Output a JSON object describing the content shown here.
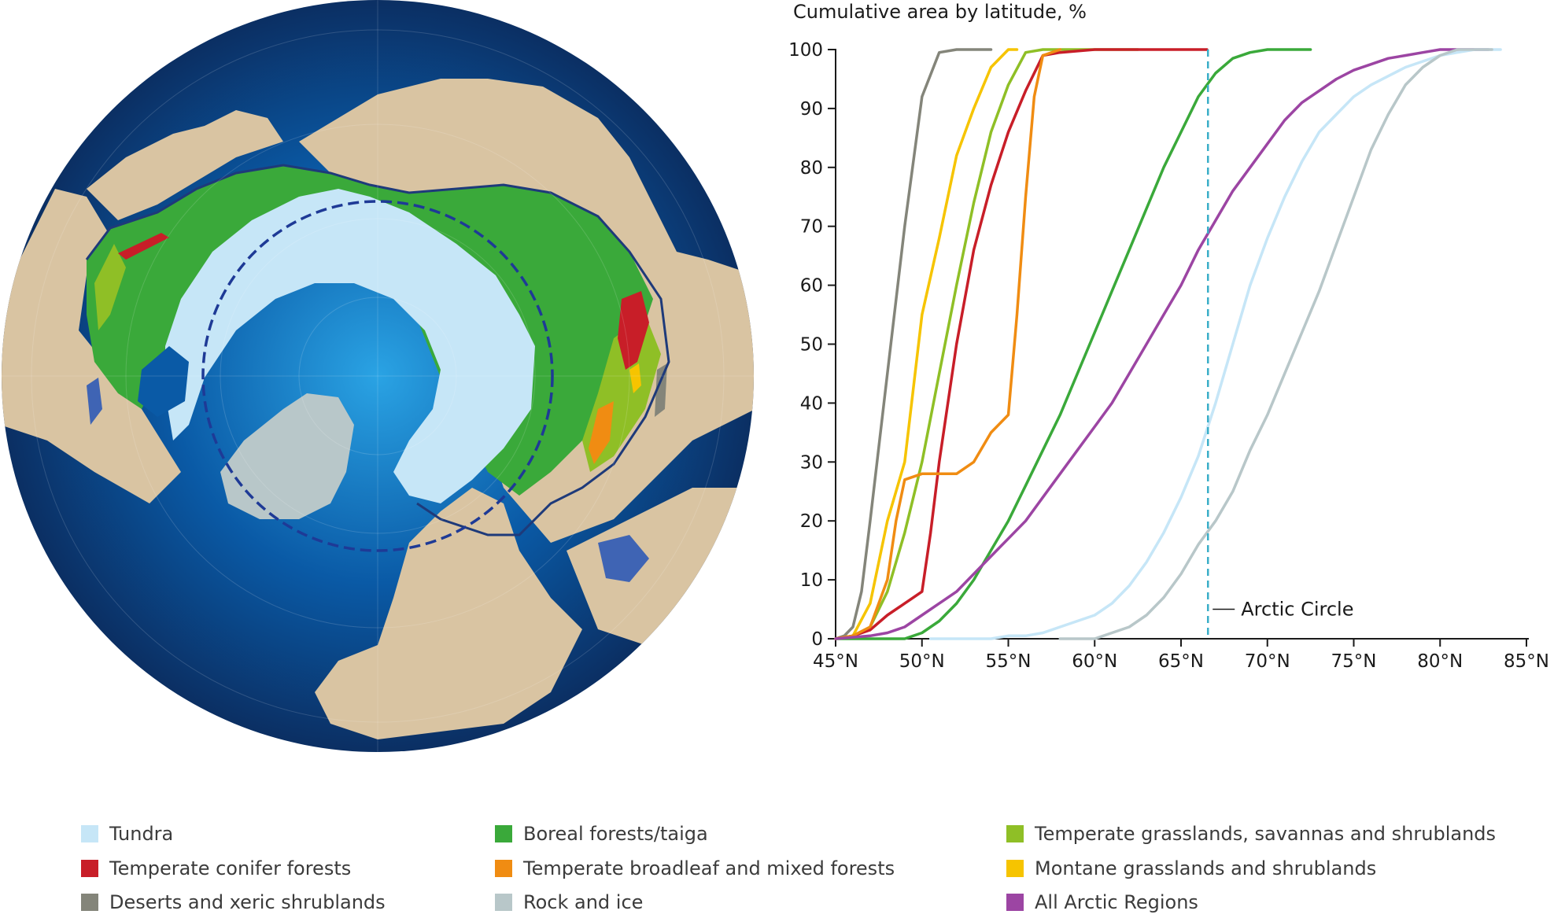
{
  "map": {
    "colors": {
      "ocean_edge": "#0b2f63",
      "ocean_mid": "#0a5aa6",
      "ocean_center": "#2aa3e4",
      "land": "#d9c4a2",
      "tundra": "#c6e6f7",
      "boreal": "#3aa93a",
      "temperate_grass": "#8fbf26",
      "conifer": "#c81e28",
      "broadleaf": "#f08c12",
      "montane": "#f6c400",
      "desert": "#84857a",
      "rock_ice": "#b8c7c9",
      "lake": "#3f64b4",
      "boundary": "#1e3a7a",
      "arctic_circle": "#1e3a96"
    }
  },
  "chart_data": {
    "type": "line",
    "title": "Cumulative area by latitude, %",
    "xlim": [
      45,
      85
    ],
    "ylim": [
      0,
      100
    ],
    "x_ticks": [
      45,
      50,
      55,
      60,
      65,
      70,
      75,
      80,
      85
    ],
    "x_tick_labels": [
      "45°N",
      "50°N",
      "55°N",
      "60°N",
      "65°N",
      "70°N",
      "75°N",
      "80°N",
      "85°N"
    ],
    "y_ticks": [
      0,
      10,
      20,
      30,
      40,
      50,
      60,
      70,
      80,
      90,
      100
    ],
    "y_tick_labels": [
      "0",
      "10",
      "20",
      "30",
      "40",
      "50",
      "60",
      "70",
      "80",
      "90",
      "100"
    ],
    "reference_line": {
      "x": 66.56,
      "label": "Arctic Circle",
      "color": "#3aaec8"
    },
    "series": [
      {
        "name": "Deserts and xeric shrublands",
        "color": "#84857a",
        "x": [
          45,
          45.5,
          46,
          46.5,
          47,
          48,
          49,
          50,
          51,
          52,
          53,
          54
        ],
        "y": [
          0,
          0.5,
          2,
          8,
          20,
          45,
          70,
          92,
          99.5,
          100,
          100,
          100
        ]
      },
      {
        "name": "Montane grasslands and shrublands",
        "color": "#f6c400",
        "x": [
          45,
          46,
          47,
          48,
          49,
          50,
          51,
          52,
          53,
          54,
          55,
          55.5
        ],
        "y": [
          0,
          0.5,
          6,
          20,
          30,
          55,
          68,
          82,
          90,
          97,
          100,
          100
        ]
      },
      {
        "name": "Temperate grasslands, savannas and shrublands",
        "color": "#8fbf26",
        "x": [
          45,
          46,
          47,
          48,
          49,
          50,
          51,
          52,
          53,
          54,
          55,
          56,
          57,
          58,
          60,
          62.5
        ],
        "y": [
          0,
          0.5,
          2,
          8,
          18,
          30,
          45,
          60,
          74,
          86,
          94,
          99.5,
          100,
          100,
          100,
          100
        ]
      },
      {
        "name": "Boreal forests/taiga",
        "color": "#3aa93a",
        "x": [
          45,
          49,
          50,
          51,
          52,
          53,
          54,
          55,
          56,
          57,
          58,
          59,
          60,
          61,
          62,
          63,
          64,
          65,
          66,
          67,
          68,
          69,
          70,
          71,
          72,
          72.5
        ],
        "y": [
          0,
          0,
          1,
          3,
          6,
          10,
          15,
          20,
          26,
          32,
          38,
          45,
          52,
          59,
          66,
          73,
          80,
          86,
          92,
          96,
          98.5,
          99.5,
          100,
          100,
          100,
          100
        ]
      },
      {
        "name": "Temperate conifer forests",
        "color": "#c81e28",
        "x": [
          45,
          46,
          47,
          48,
          49,
          50,
          50.5,
          51,
          52,
          53,
          54,
          55,
          56,
          57,
          58,
          60,
          62,
          64,
          65,
          66.5
        ],
        "y": [
          0,
          0.5,
          1.5,
          4,
          6,
          8,
          18,
          30,
          50,
          66,
          77,
          86,
          93,
          99,
          99.5,
          100,
          100,
          100,
          100,
          100
        ]
      },
      {
        "name": "Temperate broadleaf and mixed forests",
        "color": "#f08c12",
        "x": [
          45,
          46,
          47,
          48,
          48.5,
          49,
          50,
          51,
          52,
          53,
          54,
          55,
          55.5,
          56,
          56.5,
          57,
          58
        ],
        "y": [
          0,
          0.5,
          2,
          10,
          20,
          27,
          28,
          28,
          28,
          30,
          35,
          38,
          55,
          75,
          92,
          99,
          100
        ]
      },
      {
        "name": "All Arctic Regions",
        "color": "#9c45a3",
        "x": [
          45,
          47,
          48,
          49,
          50,
          51,
          52,
          53,
          54,
          55,
          56,
          57,
          58,
          59,
          60,
          61,
          62,
          63,
          64,
          65,
          66,
          67,
          68,
          69,
          70,
          71,
          72,
          73,
          74,
          75,
          76,
          77,
          78,
          79,
          80,
          81,
          82,
          82.8
        ],
        "y": [
          0,
          0.5,
          1,
          2,
          4,
          6,
          8,
          11,
          14,
          17,
          20,
          24,
          28,
          32,
          36,
          40,
          45,
          50,
          55,
          60,
          66,
          71,
          76,
          80,
          84,
          88,
          91,
          93,
          95,
          96.5,
          97.5,
          98.5,
          99,
          99.5,
          100,
          100,
          100,
          100
        ]
      },
      {
        "name": "Tundra",
        "color": "#c6e6f7",
        "x": [
          50.5,
          52,
          54,
          55,
          56,
          57,
          58,
          59,
          60,
          61,
          62,
          63,
          64,
          65,
          66,
          67,
          68,
          69,
          70,
          71,
          72,
          73,
          74,
          75,
          76,
          77,
          78,
          79,
          80,
          81,
          82,
          83.5
        ],
        "y": [
          0,
          0,
          0,
          0.5,
          0.5,
          1,
          2,
          3,
          4,
          6,
          9,
          13,
          18,
          24,
          31,
          40,
          50,
          60,
          68,
          75,
          81,
          86,
          89,
          92,
          94,
          95.5,
          97,
          98,
          99,
          99.5,
          100,
          100
        ]
      },
      {
        "name": "Rock and ice",
        "color": "#b8c7c9",
        "x": [
          58,
          59,
          60,
          61,
          62,
          63,
          64,
          65,
          66,
          67,
          68,
          69,
          70,
          71,
          72,
          73,
          74,
          75,
          76,
          77,
          78,
          79,
          80,
          81,
          82,
          83
        ],
        "y": [
          0,
          0,
          0,
          1,
          2,
          4,
          7,
          11,
          16,
          20,
          25,
          32,
          38,
          45,
          52,
          59,
          67,
          75,
          83,
          89,
          94,
          97,
          99,
          100,
          100,
          100
        ]
      }
    ]
  },
  "legend": {
    "items": [
      {
        "label": "Tundra",
        "color": "#c6e6f7"
      },
      {
        "label": "Boreal forests/taiga",
        "color": "#3aa93a"
      },
      {
        "label": "Temperate grasslands, savannas and shrublands",
        "color": "#8fbf26"
      },
      {
        "label": "Temperate conifer forests",
        "color": "#c81e28"
      },
      {
        "label": "Temperate broadleaf and mixed forests",
        "color": "#f08c12"
      },
      {
        "label": "Montane grasslands and shrublands",
        "color": "#f6c400"
      },
      {
        "label": "Deserts and xeric shrublands",
        "color": "#84857a"
      },
      {
        "label": "Rock and ice",
        "color": "#b8c7c9"
      },
      {
        "label": "All Arctic Regions",
        "color": "#9c45a3"
      }
    ]
  }
}
